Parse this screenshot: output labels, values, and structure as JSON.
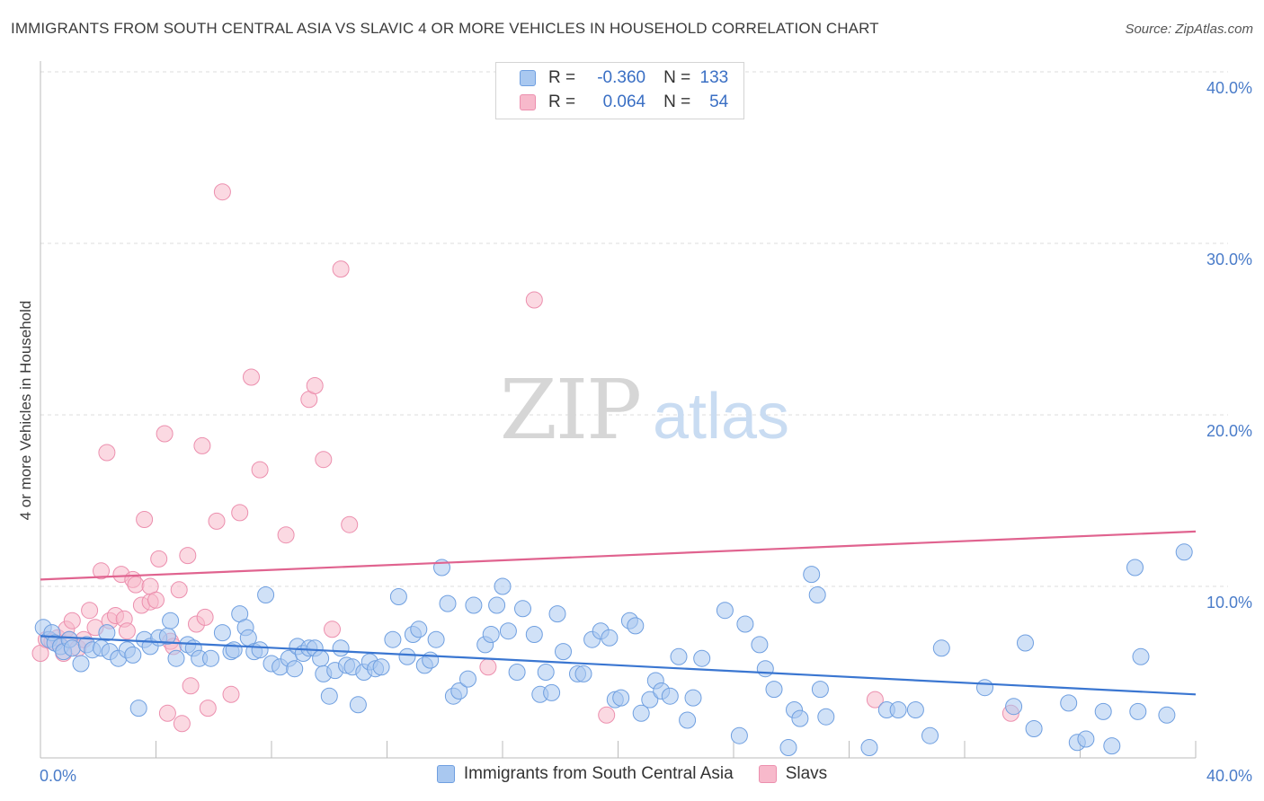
{
  "header": {
    "title": "IMMIGRANTS FROM SOUTH CENTRAL ASIA VS SLAVIC 4 OR MORE VEHICLES IN HOUSEHOLD CORRELATION CHART",
    "source": "Source: ZipAtlas.com"
  },
  "watermark": {
    "zip": "ZIP",
    "atlas": "atlas"
  },
  "legend": {
    "series": [
      {
        "r_label": "R =",
        "r_value": "-0.360",
        "n_label": "N =",
        "n_value": "133",
        "fill": "#a9c8f0",
        "stroke": "#6f9fe0"
      },
      {
        "r_label": "R =",
        "r_value": "0.064",
        "n_label": "N =",
        "n_value": "54",
        "fill": "#f7b9cb",
        "stroke": "#ec8fae"
      }
    ]
  },
  "bottom_legend": {
    "items": [
      {
        "label": "Immigrants from South Central Asia",
        "fill": "#a9c8f0",
        "stroke": "#6f9fe0"
      },
      {
        "label": "Slavs",
        "fill": "#f7b9cb",
        "stroke": "#ec8fae"
      }
    ]
  },
  "chart_data": {
    "type": "scatter",
    "title": "IMMIGRANTS FROM SOUTH CENTRAL ASIA VS SLAVIC 4 OR MORE VEHICLES IN HOUSEHOLD CORRELATION CHART",
    "xlabel": "",
    "ylabel": "4 or more Vehicles in Household",
    "xlim": [
      0,
      40
    ],
    "ylim": [
      0,
      40
    ],
    "x_tick_labels": [
      "0.0%",
      "40.0%"
    ],
    "y_ticks": [
      10,
      20,
      30,
      40
    ],
    "y_tick_labels": [
      "10.0%",
      "20.0%",
      "30.0%",
      "40.0%"
    ],
    "grid": true,
    "legend_position": "top-center",
    "series": [
      {
        "name": "Immigrants from South Central Asia",
        "color": "#6f9fe0",
        "fill": "#a9c8f0",
        "trend": {
          "x": [
            0,
            40
          ],
          "y": [
            7.1,
            3.7
          ],
          "color": "#3a76d1"
        },
        "points": [
          [
            0.1,
            7.6
          ],
          [
            0.3,
            6.9
          ],
          [
            0.4,
            7.3
          ],
          [
            0.5,
            6.7
          ],
          [
            0.7,
            6.5
          ],
          [
            0.8,
            6.2
          ],
          [
            1.0,
            6.9
          ],
          [
            1.1,
            6.4
          ],
          [
            1.4,
            5.5
          ],
          [
            1.6,
            6.6
          ],
          [
            1.8,
            6.3
          ],
          [
            2.1,
            6.4
          ],
          [
            2.3,
            7.3
          ],
          [
            2.4,
            6.2
          ],
          [
            2.7,
            5.8
          ],
          [
            3.0,
            6.3
          ],
          [
            3.2,
            6.0
          ],
          [
            3.4,
            2.9
          ],
          [
            3.6,
            6.9
          ],
          [
            3.8,
            6.5
          ],
          [
            4.1,
            7.0
          ],
          [
            4.4,
            7.1
          ],
          [
            4.5,
            8.0
          ],
          [
            4.7,
            5.8
          ],
          [
            5.1,
            6.6
          ],
          [
            5.3,
            6.4
          ],
          [
            5.5,
            5.8
          ],
          [
            5.9,
            5.8
          ],
          [
            6.3,
            7.3
          ],
          [
            6.6,
            6.2
          ],
          [
            6.7,
            6.3
          ],
          [
            6.9,
            8.4
          ],
          [
            7.1,
            7.6
          ],
          [
            7.2,
            7.0
          ],
          [
            7.4,
            6.2
          ],
          [
            7.6,
            6.3
          ],
          [
            7.8,
            9.5
          ],
          [
            8.0,
            5.5
          ],
          [
            8.3,
            5.3
          ],
          [
            8.6,
            5.8
          ],
          [
            8.8,
            5.2
          ],
          [
            8.9,
            6.5
          ],
          [
            9.1,
            6.1
          ],
          [
            9.3,
            6.4
          ],
          [
            9.5,
            6.4
          ],
          [
            9.7,
            5.8
          ],
          [
            9.8,
            4.9
          ],
          [
            10.0,
            3.6
          ],
          [
            10.2,
            5.1
          ],
          [
            10.4,
            6.4
          ],
          [
            10.6,
            5.4
          ],
          [
            10.8,
            5.3
          ],
          [
            11.0,
            3.1
          ],
          [
            11.2,
            5.0
          ],
          [
            11.4,
            5.6
          ],
          [
            11.6,
            5.2
          ],
          [
            11.8,
            5.3
          ],
          [
            12.2,
            6.9
          ],
          [
            12.4,
            9.4
          ],
          [
            12.7,
            5.9
          ],
          [
            12.9,
            7.2
          ],
          [
            13.1,
            7.5
          ],
          [
            13.3,
            5.4
          ],
          [
            13.5,
            5.7
          ],
          [
            13.7,
            6.9
          ],
          [
            13.9,
            11.1
          ],
          [
            14.1,
            9.0
          ],
          [
            14.3,
            3.6
          ],
          [
            14.5,
            3.9
          ],
          [
            14.8,
            4.6
          ],
          [
            15.0,
            8.9
          ],
          [
            15.4,
            6.6
          ],
          [
            15.6,
            7.2
          ],
          [
            15.8,
            8.9
          ],
          [
            16.0,
            10.0
          ],
          [
            16.2,
            7.4
          ],
          [
            16.5,
            5.0
          ],
          [
            16.7,
            8.7
          ],
          [
            17.1,
            7.2
          ],
          [
            17.3,
            3.7
          ],
          [
            17.5,
            5.0
          ],
          [
            17.7,
            3.8
          ],
          [
            17.9,
            8.4
          ],
          [
            18.1,
            6.2
          ],
          [
            18.6,
            4.9
          ],
          [
            18.8,
            4.9
          ],
          [
            19.1,
            6.9
          ],
          [
            19.4,
            7.4
          ],
          [
            19.7,
            7.0
          ],
          [
            19.9,
            3.4
          ],
          [
            20.1,
            3.5
          ],
          [
            20.4,
            8.0
          ],
          [
            20.6,
            7.7
          ],
          [
            20.8,
            2.6
          ],
          [
            21.1,
            3.4
          ],
          [
            21.3,
            4.5
          ],
          [
            21.5,
            3.9
          ],
          [
            21.8,
            3.6
          ],
          [
            22.1,
            5.9
          ],
          [
            22.4,
            2.2
          ],
          [
            22.6,
            3.5
          ],
          [
            22.9,
            5.8
          ],
          [
            23.7,
            8.6
          ],
          [
            24.2,
            1.3
          ],
          [
            24.4,
            7.8
          ],
          [
            24.9,
            6.6
          ],
          [
            25.1,
            5.2
          ],
          [
            25.4,
            4.0
          ],
          [
            25.9,
            0.6
          ],
          [
            26.1,
            2.8
          ],
          [
            26.3,
            2.3
          ],
          [
            26.7,
            10.7
          ],
          [
            26.9,
            9.5
          ],
          [
            27.0,
            4.0
          ],
          [
            27.2,
            2.4
          ],
          [
            28.7,
            0.6
          ],
          [
            29.3,
            2.8
          ],
          [
            29.7,
            2.8
          ],
          [
            30.3,
            2.8
          ],
          [
            30.8,
            1.3
          ],
          [
            31.2,
            6.4
          ],
          [
            32.7,
            4.1
          ],
          [
            33.7,
            3.0
          ],
          [
            34.1,
            6.7
          ],
          [
            34.4,
            1.7
          ],
          [
            35.6,
            3.2
          ],
          [
            35.9,
            0.9
          ],
          [
            36.2,
            1.1
          ],
          [
            36.8,
            2.7
          ],
          [
            37.1,
            0.7
          ],
          [
            38.0,
            2.7
          ],
          [
            37.9,
            11.1
          ],
          [
            38.1,
            5.9
          ],
          [
            39.0,
            2.5
          ],
          [
            39.6,
            12.0
          ]
        ]
      },
      {
        "name": "Slavs",
        "color": "#ec8fae",
        "fill": "#f7b9cb",
        "trend": {
          "x": [
            0,
            40
          ],
          "y": [
            10.4,
            13.2
          ],
          "color": "#e0638f"
        },
        "points": [
          [
            0.0,
            6.1
          ],
          [
            0.2,
            6.9
          ],
          [
            0.4,
            6.8
          ],
          [
            0.6,
            7.0
          ],
          [
            0.8,
            6.1
          ],
          [
            0.9,
            7.5
          ],
          [
            1.0,
            6.9
          ],
          [
            1.1,
            8.0
          ],
          [
            1.3,
            6.4
          ],
          [
            1.5,
            6.9
          ],
          [
            1.7,
            8.6
          ],
          [
            1.9,
            7.6
          ],
          [
            2.1,
            10.9
          ],
          [
            2.3,
            17.8
          ],
          [
            2.4,
            8.0
          ],
          [
            2.6,
            8.3
          ],
          [
            2.8,
            10.7
          ],
          [
            2.9,
            8.1
          ],
          [
            3.0,
            7.4
          ],
          [
            3.2,
            10.4
          ],
          [
            3.3,
            10.1
          ],
          [
            3.5,
            8.9
          ],
          [
            3.6,
            13.9
          ],
          [
            3.8,
            9.1
          ],
          [
            3.8,
            10.0
          ],
          [
            4.0,
            9.2
          ],
          [
            4.1,
            11.6
          ],
          [
            4.3,
            18.9
          ],
          [
            4.4,
            2.6
          ],
          [
            4.5,
            6.8
          ],
          [
            4.6,
            6.5
          ],
          [
            4.8,
            9.8
          ],
          [
            4.9,
            2.0
          ],
          [
            5.1,
            11.8
          ],
          [
            5.2,
            4.2
          ],
          [
            5.4,
            7.8
          ],
          [
            5.6,
            18.2
          ],
          [
            5.7,
            8.2
          ],
          [
            5.8,
            2.9
          ],
          [
            6.1,
            13.8
          ],
          [
            6.3,
            33.0
          ],
          [
            6.6,
            3.7
          ],
          [
            6.9,
            14.3
          ],
          [
            7.3,
            22.2
          ],
          [
            7.6,
            16.8
          ],
          [
            8.5,
            13.0
          ],
          [
            9.3,
            20.9
          ],
          [
            9.5,
            21.7
          ],
          [
            9.8,
            17.4
          ],
          [
            10.1,
            7.5
          ],
          [
            10.4,
            28.5
          ],
          [
            10.7,
            13.6
          ],
          [
            15.5,
            5.3
          ],
          [
            17.1,
            26.7
          ],
          [
            19.6,
            2.5
          ],
          [
            28.9,
            3.4
          ],
          [
            33.6,
            2.6
          ]
        ]
      }
    ]
  }
}
